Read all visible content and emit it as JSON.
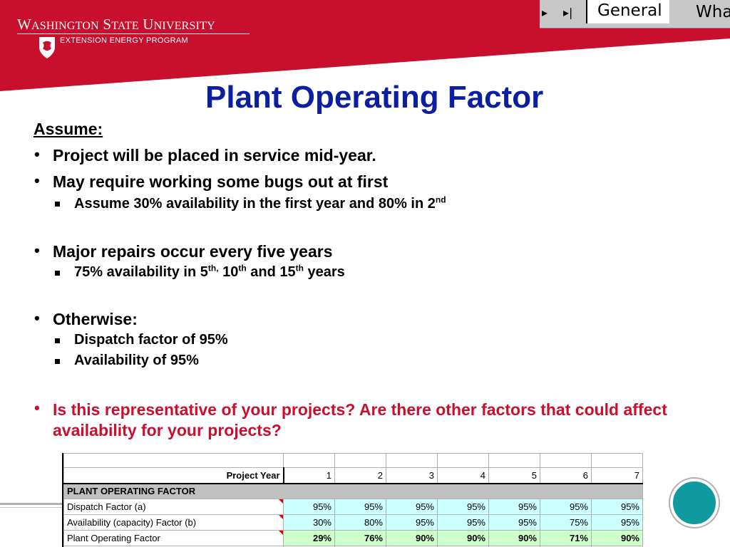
{
  "header": {
    "university_name": "Washington State University",
    "program_name": "EXTENSION ENERGY PROGRAM",
    "brand_color": "#c8102e",
    "logo_icon": "cougar-shield-icon"
  },
  "excel_tabs": {
    "next_icon": "tab-scroll-next-icon",
    "last_icon": "tab-scroll-last-icon",
    "active_tab": "General",
    "next_tab": "Wha"
  },
  "slide": {
    "title": "Plant Operating Factor",
    "title_color": "#0b1fa0",
    "assume_label": "Assume:",
    "bullets": [
      {
        "text": "Project will be placed in service mid-year."
      },
      {
        "text": "May require working some bugs out at first"
      },
      {
        "text": "Major repairs occur every five years"
      },
      {
        "text": "Otherwise:"
      },
      {
        "text": "Is this representative of your projects?  Are there other factors that could affect availability for your projects?"
      }
    ],
    "sub_bullets": {
      "bugs_pre": "Assume 30% availability in the first year and 80% in 2",
      "bugs_sup": "nd",
      "repairs_a": "75% availability in 5",
      "repairs_sup1": "th,",
      "repairs_b": " 10",
      "repairs_sup2": "th",
      "repairs_c": " and 15",
      "repairs_sup3": "th",
      "repairs_d": " years",
      "dispatch": "Dispatch factor of 95%",
      "availability": "Availability of 95%"
    },
    "question_color": "#c8102e"
  },
  "spreadsheet": {
    "year_label": "Project Year",
    "years": [
      "1",
      "2",
      "3",
      "4",
      "5",
      "6",
      "7"
    ],
    "section_label": "PLANT OPERATING FACTOR",
    "rows": [
      {
        "label": "Dispatch Factor (a)",
        "values": [
          "95%",
          "95%",
          "95%",
          "95%",
          "95%",
          "95%",
          "95%"
        ]
      },
      {
        "label": "Availability (capacity) Factor (b)",
        "values": [
          "30%",
          "80%",
          "95%",
          "95%",
          "95%",
          "75%",
          "95%"
        ]
      },
      {
        "label": "Plant Operating Factor",
        "values": [
          "29%",
          "76%",
          "90%",
          "90%",
          "90%",
          "71%",
          "90%"
        ]
      }
    ]
  },
  "decor": {
    "circle_color": "#0f9aa0"
  }
}
